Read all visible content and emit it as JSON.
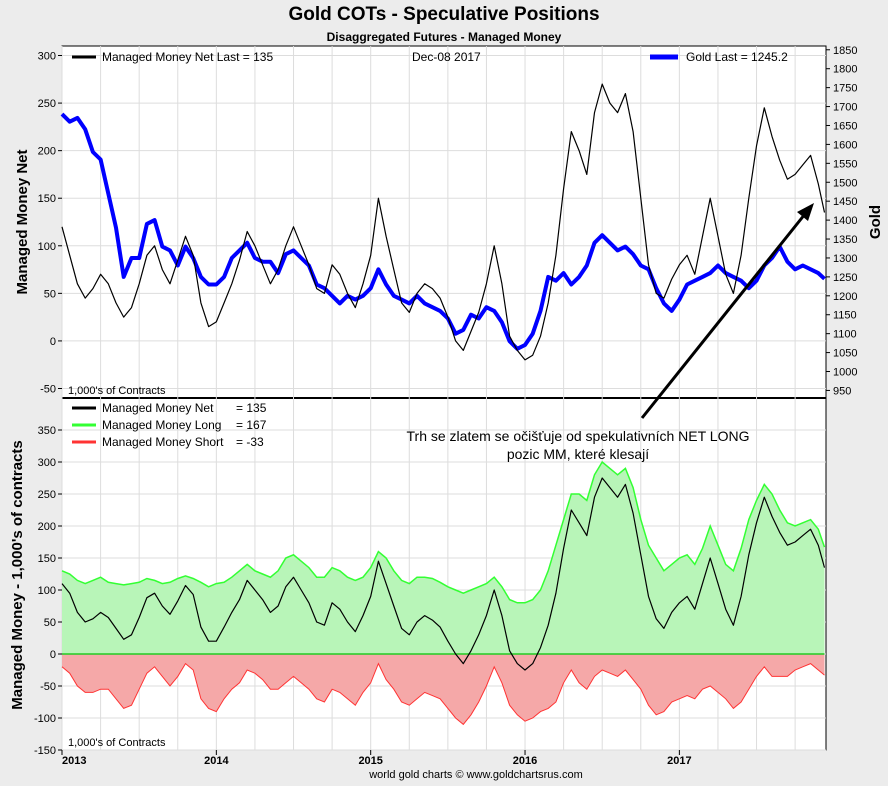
{
  "chart_data": [
    {
      "type": "line",
      "title": "Gold COTs - Speculative Positions",
      "subtitle": "Disaggregated Futures - Managed Money",
      "ylabel": "Managed Money Net",
      "y2label": "Gold",
      "units_note": "1,000's of Contracts",
      "ylim": [
        -60,
        310
      ],
      "y2lim": [
        930,
        1860
      ],
      "yticks": [
        -50,
        0,
        50,
        100,
        150,
        200,
        250,
        300
      ],
      "y2ticks": [
        950,
        1000,
        1050,
        1100,
        1150,
        1200,
        1250,
        1300,
        1350,
        1400,
        1450,
        1500,
        1550,
        1600,
        1650,
        1700,
        1750,
        1800,
        1850
      ],
      "legend": {
        "net": "Managed Money Net   Last = 135",
        "date": "Dec-08  2017",
        "gold": "Gold Last = 1245.2"
      },
      "annotation": [
        "Trh se zlatem se očišťuje od spekulativních NET LONG",
        "pozic MM, které klesají"
      ],
      "series": [
        {
          "name": "Managed Money Net",
          "color": "#000000",
          "x": [
            2013.0,
            2013.05,
            2013.1,
            2013.15,
            2013.2,
            2013.25,
            2013.3,
            2013.35,
            2013.4,
            2013.45,
            2013.5,
            2013.55,
            2013.6,
            2013.65,
            2013.7,
            2013.75,
            2013.8,
            2013.85,
            2013.9,
            2013.95,
            2014.0,
            2014.05,
            2014.1,
            2014.15,
            2014.2,
            2014.25,
            2014.3,
            2014.35,
            2014.4,
            2014.45,
            2014.5,
            2014.55,
            2014.6,
            2014.65,
            2014.7,
            2014.75,
            2014.8,
            2014.85,
            2014.9,
            2014.95,
            2015.0,
            2015.05,
            2015.1,
            2015.15,
            2015.2,
            2015.25,
            2015.3,
            2015.35,
            2015.4,
            2015.45,
            2015.5,
            2015.55,
            2015.6,
            2015.65,
            2015.7,
            2015.75,
            2015.8,
            2015.85,
            2015.9,
            2015.95,
            2016.0,
            2016.05,
            2016.1,
            2016.15,
            2016.2,
            2016.25,
            2016.3,
            2016.35,
            2016.4,
            2016.45,
            2016.5,
            2016.55,
            2016.6,
            2016.65,
            2016.7,
            2016.75,
            2016.8,
            2016.85,
            2016.9,
            2016.95,
            2017.0,
            2017.05,
            2017.1,
            2017.15,
            2017.2,
            2017.25,
            2017.3,
            2017.35,
            2017.4,
            2017.45,
            2017.5,
            2017.55,
            2017.6,
            2017.65,
            2017.7,
            2017.75,
            2017.8,
            2017.85,
            2017.9,
            2017.94
          ],
          "values": [
            120,
            90,
            60,
            45,
            55,
            70,
            60,
            40,
            25,
            35,
            60,
            90,
            100,
            75,
            60,
            85,
            110,
            90,
            40,
            15,
            20,
            40,
            60,
            85,
            115,
            100,
            80,
            60,
            75,
            100,
            120,
            100,
            80,
            55,
            50,
            80,
            70,
            50,
            35,
            60,
            90,
            150,
            110,
            75,
            40,
            30,
            50,
            60,
            55,
            45,
            25,
            0,
            -10,
            10,
            30,
            60,
            100,
            60,
            5,
            -10,
            -20,
            -15,
            5,
            40,
            90,
            160,
            220,
            200,
            175,
            240,
            270,
            250,
            240,
            260,
            220,
            150,
            80,
            50,
            45,
            65,
            80,
            90,
            70,
            110,
            150,
            110,
            70,
            50,
            90,
            150,
            205,
            245,
            215,
            190,
            170,
            175,
            185,
            195,
            165,
            135
          ]
        },
        {
          "name": "Gold",
          "color": "#0000ff",
          "x": [
            2013.0,
            2013.05,
            2013.1,
            2013.15,
            2013.2,
            2013.25,
            2013.3,
            2013.35,
            2013.4,
            2013.45,
            2013.5,
            2013.55,
            2013.6,
            2013.65,
            2013.7,
            2013.75,
            2013.8,
            2013.85,
            2013.9,
            2013.95,
            2014.0,
            2014.05,
            2014.1,
            2014.15,
            2014.2,
            2014.25,
            2014.3,
            2014.35,
            2014.4,
            2014.45,
            2014.5,
            2014.55,
            2014.6,
            2014.65,
            2014.7,
            2014.75,
            2014.8,
            2014.85,
            2014.9,
            2014.95,
            2015.0,
            2015.05,
            2015.1,
            2015.15,
            2015.2,
            2015.25,
            2015.3,
            2015.35,
            2015.4,
            2015.45,
            2015.5,
            2015.55,
            2015.6,
            2015.65,
            2015.7,
            2015.75,
            2015.8,
            2015.85,
            2015.9,
            2015.95,
            2016.0,
            2016.05,
            2016.1,
            2016.15,
            2016.2,
            2016.25,
            2016.3,
            2016.35,
            2016.4,
            2016.45,
            2016.5,
            2016.55,
            2016.6,
            2016.65,
            2016.7,
            2016.75,
            2016.8,
            2016.85,
            2016.9,
            2016.95,
            2017.0,
            2017.05,
            2017.1,
            2017.15,
            2017.2,
            2017.25,
            2017.3,
            2017.35,
            2017.4,
            2017.45,
            2017.5,
            2017.55,
            2017.6,
            2017.65,
            2017.7,
            2017.75,
            2017.8,
            2017.85,
            2017.9,
            2017.94
          ],
          "values": [
            1680,
            1660,
            1670,
            1640,
            1580,
            1560,
            1470,
            1380,
            1250,
            1300,
            1300,
            1390,
            1400,
            1330,
            1320,
            1280,
            1330,
            1300,
            1250,
            1230,
            1230,
            1250,
            1300,
            1320,
            1340,
            1300,
            1290,
            1290,
            1260,
            1310,
            1320,
            1300,
            1280,
            1230,
            1220,
            1200,
            1180,
            1200,
            1190,
            1200,
            1220,
            1270,
            1230,
            1200,
            1190,
            1180,
            1200,
            1180,
            1170,
            1160,
            1140,
            1100,
            1110,
            1150,
            1140,
            1170,
            1160,
            1130,
            1080,
            1060,
            1070,
            1100,
            1160,
            1250,
            1240,
            1260,
            1230,
            1250,
            1280,
            1340,
            1360,
            1340,
            1320,
            1330,
            1310,
            1280,
            1270,
            1220,
            1180,
            1160,
            1190,
            1230,
            1240,
            1250,
            1260,
            1280,
            1260,
            1250,
            1240,
            1220,
            1240,
            1280,
            1300,
            1330,
            1290,
            1270,
            1280,
            1270,
            1260,
            1245
          ]
        }
      ]
    },
    {
      "type": "area",
      "ylabel": "Managed Money - 1,000's of contracts",
      "units_note": "1,000's of Contracts",
      "ylim": [
        -150,
        400
      ],
      "yticks": [
        -150,
        -100,
        -50,
        0,
        50,
        100,
        150,
        200,
        250,
        300,
        350
      ],
      "xlim": [
        2013.0,
        2017.95
      ],
      "xticks": [
        2013,
        2014,
        2015,
        2016,
        2017
      ],
      "xtick_labels": [
        "2013",
        "2014",
        "2015",
        "2016",
        "2017"
      ],
      "legend": [
        {
          "label": "Managed Money Net",
          "value": "= 135",
          "color": "#000000"
        },
        {
          "label": "Managed Money Long",
          "value": "= 167",
          "color": "#33ff33"
        },
        {
          "label": "Managed Money Short",
          "value": "= -33",
          "color": "#ff3333"
        }
      ],
      "x": [
        2013.0,
        2013.05,
        2013.1,
        2013.15,
        2013.2,
        2013.25,
        2013.3,
        2013.35,
        2013.4,
        2013.45,
        2013.5,
        2013.55,
        2013.6,
        2013.65,
        2013.7,
        2013.75,
        2013.8,
        2013.85,
        2013.9,
        2013.95,
        2014.0,
        2014.05,
        2014.1,
        2014.15,
        2014.2,
        2014.25,
        2014.3,
        2014.35,
        2014.4,
        2014.45,
        2014.5,
        2014.55,
        2014.6,
        2014.65,
        2014.7,
        2014.75,
        2014.8,
        2014.85,
        2014.9,
        2014.95,
        2015.0,
        2015.05,
        2015.1,
        2015.15,
        2015.2,
        2015.25,
        2015.3,
        2015.35,
        2015.4,
        2015.45,
        2015.5,
        2015.55,
        2015.6,
        2015.65,
        2015.7,
        2015.75,
        2015.8,
        2015.85,
        2015.9,
        2015.95,
        2016.0,
        2016.05,
        2016.1,
        2016.15,
        2016.2,
        2016.25,
        2016.3,
        2016.35,
        2016.4,
        2016.45,
        2016.5,
        2016.55,
        2016.6,
        2016.65,
        2016.7,
        2016.75,
        2016.8,
        2016.85,
        2016.9,
        2016.95,
        2017.0,
        2017.05,
        2017.1,
        2017.15,
        2017.2,
        2017.25,
        2017.3,
        2017.35,
        2017.4,
        2017.45,
        2017.5,
        2017.55,
        2017.6,
        2017.65,
        2017.7,
        2017.75,
        2017.8,
        2017.85,
        2017.9,
        2017.94
      ],
      "series": [
        {
          "name": "Managed Money Long",
          "color": "#33ff33",
          "fill": "#b8f5b8",
          "values": [
            130,
            125,
            115,
            110,
            115,
            120,
            112,
            110,
            108,
            110,
            112,
            118,
            115,
            110,
            112,
            118,
            122,
            118,
            112,
            105,
            110,
            112,
            120,
            130,
            140,
            130,
            125,
            120,
            130,
            150,
            155,
            145,
            135,
            120,
            120,
            135,
            130,
            120,
            115,
            120,
            135,
            160,
            150,
            130,
            115,
            110,
            120,
            120,
            118,
            112,
            105,
            100,
            95,
            100,
            105,
            110,
            120,
            105,
            85,
            80,
            80,
            85,
            100,
            130,
            170,
            210,
            250,
            250,
            240,
            280,
            300,
            290,
            280,
            290,
            260,
            210,
            170,
            150,
            130,
            140,
            150,
            155,
            140,
            165,
            200,
            170,
            140,
            130,
            165,
            210,
            240,
            265,
            250,
            225,
            205,
            200,
            205,
            210,
            195,
            167
          ]
        },
        {
          "name": "Managed Money Short",
          "color": "#ff3333",
          "fill": "#f5a8a8",
          "values": [
            -20,
            -30,
            -50,
            -60,
            -60,
            -55,
            -55,
            -70,
            -85,
            -80,
            -55,
            -30,
            -20,
            -35,
            -50,
            -35,
            -15,
            -25,
            -70,
            -85,
            -90,
            -70,
            -55,
            -45,
            -25,
            -30,
            -40,
            -55,
            -55,
            -45,
            -35,
            -45,
            -55,
            -70,
            -75,
            -55,
            -60,
            -70,
            -80,
            -60,
            -45,
            -15,
            -40,
            -55,
            -75,
            -80,
            -70,
            -60,
            -65,
            -70,
            -85,
            -100,
            -110,
            -95,
            -75,
            -50,
            -20,
            -45,
            -80,
            -95,
            -105,
            -100,
            -90,
            -85,
            -75,
            -45,
            -25,
            -45,
            -55,
            -35,
            -25,
            -30,
            -35,
            -25,
            -40,
            -55,
            -80,
            -95,
            -90,
            -75,
            -70,
            -65,
            -70,
            -55,
            -50,
            -60,
            -70,
            -85,
            -75,
            -55,
            -35,
            -20,
            -35,
            -35,
            -35,
            -25,
            -20,
            -15,
            -25,
            -33
          ]
        },
        {
          "name": "Managed Money Net",
          "color": "#000000",
          "fill": "none",
          "values": [
            110,
            95,
            65,
            50,
            55,
            65,
            57,
            40,
            23,
            30,
            57,
            88,
            95,
            75,
            62,
            83,
            107,
            93,
            42,
            20,
            20,
            42,
            65,
            85,
            115,
            100,
            85,
            65,
            75,
            105,
            120,
            100,
            80,
            50,
            45,
            80,
            70,
            50,
            35,
            60,
            90,
            145,
            110,
            75,
            40,
            30,
            50,
            60,
            53,
            42,
            20,
            0,
            -15,
            5,
            30,
            60,
            100,
            60,
            5,
            -15,
            -25,
            -15,
            10,
            45,
            95,
            165,
            225,
            205,
            185,
            245,
            275,
            260,
            245,
            265,
            220,
            155,
            90,
            55,
            40,
            65,
            80,
            90,
            70,
            110,
            150,
            110,
            70,
            45,
            90,
            155,
            205,
            245,
            215,
            190,
            170,
            175,
            185,
            195,
            170,
            135
          ]
        }
      ]
    }
  ],
  "footer": "world gold charts © www.goldchartsrus.com"
}
